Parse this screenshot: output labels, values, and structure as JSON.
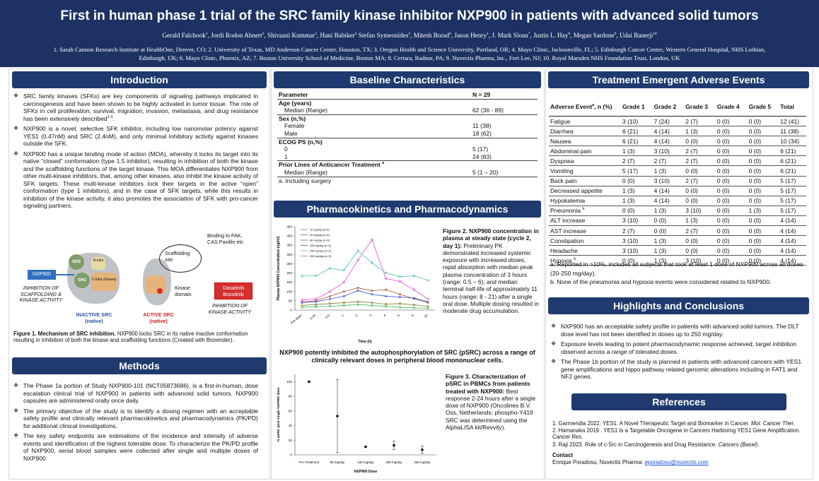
{
  "header": {
    "title": "First in human phase 1 trial of the SRC family kinase inhibitor NXP900 in patients with advanced solid tumors",
    "authors": [
      {
        "t": "Gerald Falchook"
      },
      {
        "sup": "1"
      },
      {
        "t": ", Jordi Rodon Ahnert"
      },
      {
        "sup": "2"
      },
      {
        "t": ", Shivaani Kummar"
      },
      {
        "sup": "3"
      },
      {
        "t": ", Hani Babiker"
      },
      {
        "sup": "4"
      },
      {
        "t": " Stefan Symeonides"
      },
      {
        "sup": "5"
      },
      {
        "t": ", Mitesh Borad"
      },
      {
        "sup": "6"
      },
      {
        "t": ", Jason Henry"
      },
      {
        "sup": "1"
      },
      {
        "t": ", J. Mark Sloan"
      },
      {
        "sup": "7"
      },
      {
        "t": ", Justin L. Hay"
      },
      {
        "sup": "8"
      },
      {
        "t": ", Megan Sardone"
      },
      {
        "sup": "9"
      },
      {
        "t": ", Udai Banerji"
      },
      {
        "sup": "10"
      }
    ],
    "affiliations": "1. Sarah Cannon Research Institute at HealthOne, Denver, CO; 2. University of Texas, MD Anderson Cancer Center, Houston, TX; 3. Oregon Health and Science University, Portland, OR; 4. Mayo Clinic, Jacksonville, FL; 5. Edinburgh Cancer Centre, Western General Hospital, NHS Lothian, Edinburgh, UK; 6. Mayo Clinic, Phoenix, AZ; 7. Boston University School of Medicine, Boston  MA; 8. Certara, Radnor, PA; 9. Nuvectis Pharma, Inc., Fort Lee, NJ; 10. Royal Marsden NHS Foundation Trust, London, UK"
  },
  "introduction": {
    "title": "Introduction",
    "bullets": [
      [
        {
          "t": "SRC family kinases (SFKs) are key components of signaling pathways implicated in carcinogenesis and have been shown to be highly activated in tumor tissue. The role of SFKs in cell proliferation, survival, migration, invasion, metastasis, and drug resistance has been extensively described"
        },
        {
          "sup": "1-3"
        },
        {
          "t": "."
        }
      ],
      [
        {
          "t": "NXP900 is a novel, selective SFK inhibitor, including low nanomolar potency against YES1 (0.47nM) and SRC (2.4nM), and only minimal inhibitory activity against kinases outside the SFK."
        }
      ],
      [
        {
          "t": "NXP900 has a unique binding mode of action (MOA), whereby it locks its target into its native “closed” conformation (type 1.5 inhibitor), resulting in inhibition of both the kinase and the scaffolding functions of the target kinase. This MOA differentiates NXP900 from other multi-kinase inhibitors, that, among other kinases, also inhibit the kinase activity of SFK targets. These multi-kinase inhibitors lock their targets in the active “open” conformation (type 1 inhibitors), and in the case of SFK targets, while this results in inhibition of the kinase activity, it also promotes the association of SFK with pro-cancer signaling partners."
        }
      ]
    ]
  },
  "figure1": {
    "sh3": "SH3",
    "sh2": "SH2",
    "nlobe": "N-lobe",
    "clobe": "C-lobe (Kinase)",
    "nxp900": "NXP900",
    "inhibition_scaffolding": "INHIBITION OF SCAFFOLDING & KINASE ACTIVITY",
    "inactive": "INACTIVE SRC (native)",
    "scaffolding_site": "Scaffolding site",
    "binding": "Binding to FAK, CAS Paxillin etc",
    "kinase_domain": "Kinase domain",
    "drugs": "Dasatinib Bosutinib",
    "inhibition_kinase": "INHIBITION OF KINASE ACTIVITY",
    "active": "ACTIVE SRC (native)",
    "caption": [
      {
        "b": "Figure 1. Mechanism of SRC inhibition."
      },
      {
        "t": " NXP900 locks SRC in its native inactive conformation resulting in inhibition of  both the kinase and scaffolding functions (Created with Biorender)."
      }
    ]
  },
  "methods": {
    "title": "Methods",
    "bullets": [
      [
        {
          "t": "The Phase 1a portion of Study NXP900-101 (NCT05873686), is a first-in-human, dose escalation clinical trial of NXP900 in patients with advanced solid tumors. NXP900 capsules are administered orally once daily."
        }
      ],
      [
        {
          "t": "The primary objective of the study is to identify a dosing regimen with an acceptable safety profile and clinically relevant pharmacokinetics and pharmacodynamics (PK/PD) for additional clinical investigations."
        }
      ],
      [
        {
          "t": "The key safety endpoints are estimations of the incidence and intensity of adverse events and identification of the highest tolerable dose. To characterize the PK/PD profile of NXP900, serial blood samples were collected after single and multiple doses of NXP900."
        }
      ]
    ]
  },
  "baseline": {
    "title": "Baseline Characteristics",
    "header": [
      "Parameter",
      "N = 29"
    ],
    "groups": [
      {
        "name": "Age (years)",
        "rows": [
          [
            "Median (Range)",
            "62 (36 - 89)"
          ]
        ]
      },
      {
        "name": "Sex (n,%)",
        "rows": [
          [
            "Female",
            "11 (38)"
          ],
          [
            "Male",
            "18 (62)"
          ]
        ]
      },
      {
        "name": "ECOG PS  (n,%)",
        "rows": [
          [
            "0",
            "5 (17)"
          ],
          [
            "1",
            "24 (83)"
          ]
        ]
      },
      {
        "name": "Prior Lines of Anticancer Treatment",
        "sup": "a",
        "rows": [
          [
            "Median (Range)",
            "5 (1 – 20)"
          ]
        ]
      }
    ],
    "footnote": "a. Including surgery"
  },
  "pkpd": {
    "title": "Pharmacokinetics and Pharmacodynamics",
    "figure2": {
      "chart": {
        "type": "line",
        "categories": [
          "Pre-dose",
          "0.25",
          "0.5",
          "1",
          "2",
          "3",
          "4",
          "5",
          "6",
          "24"
        ],
        "series": [
          {
            "name": "20 mg/day (n=4)",
            "color": "#3cb44b",
            "values": [
              15,
              18,
              20,
              25,
              30,
              25,
              20,
              15,
              12,
              10
            ]
          },
          {
            "name": "40 mg/day (n=4)",
            "color": "#7a7a2a",
            "values": [
              25,
              30,
              35,
              40,
              45,
              40,
              32,
              35,
              28,
              20
            ]
          },
          {
            "name": "80 mg/day (n=3)",
            "color": "#a0522d",
            "values": [
              45,
              50,
              75,
              100,
              120,
              105,
              110,
              85,
              62,
              40
            ]
          },
          {
            "name": "150 mg/day (n=3)",
            "color": "#3f51d8",
            "values": [
              40,
              45,
              60,
              75,
              105,
              85,
              75,
              70,
              65,
              45
            ]
          },
          {
            "name": "200 mg/day (n=3)",
            "color": "#4fc1b0",
            "values": [
              185,
              185,
              225,
              215,
              320,
              255,
              200,
              180,
              185,
              160
            ]
          },
          {
            "name": "250 mg/day (n=3)",
            "color": "#e64ad8",
            "values": [
              55,
              60,
              100,
              150,
              270,
              380,
              170,
              155,
              110,
              60
            ]
          }
        ],
        "ylim": [
          0,
          450
        ],
        "yticks": [
          0,
          50,
          100,
          150,
          200,
          250,
          300,
          350,
          400,
          450
        ],
        "y_label": "Plasma NXP900 Concentration (ng/ml)",
        "x_label": "Time (h)"
      },
      "caption": [
        {
          "b": "Figure 2. NXP900 concentration in plasma at steady state (cycle 2, day 1):"
        },
        {
          "t": " Preliminary PK demonstrated increased systemic exposure with increased doses, rapid absorption with median peak plasma concentration of 3 hours (range: 0.5 – 6), and median terminal half-life of approximately 11 hours (range: 8 - 21) after a single oral dose. Multiple dosing resulted in moderate drug accumulation."
        }
      ]
    },
    "psrc_title": "NXP900 potently inhibited the autophosphorylation of SRC (pSRC) across a range of clinically relevant doses in peripheral blood mononuclear cells.",
    "figure3": {
      "chart": {
        "type": "scatter",
        "categories": [
          "Pre-Treatment",
          "80 mg/day",
          "150 mg/day",
          "200 mg/day",
          "250 mg/day"
        ],
        "values": [
          100,
          53,
          11,
          13,
          7
        ],
        "errors": [
          0,
          50,
          0,
          6,
          5
        ],
        "color": "#111111",
        "ylim": [
          0,
          110
        ],
        "yticks": [
          0,
          20,
          40,
          60,
          80,
          100
        ],
        "y_label": "% pSRC post single NXP900 dose",
        "x_label": "NXP900 Dose"
      },
      "caption": [
        {
          "b": "Figure 3. Characterization of pSRC in PBMCs from patients treated with NXP900:"
        },
        {
          "t": " Best response 2-24 hours after a single dose of NXP900 (Oncolines B.V. Oss, Netherlands; phospho-Y419 SRC was determined using the AlphaLISA kit/Revvity)."
        }
      ]
    }
  },
  "adverse_events": {
    "title": "Treatment Emergent Adverse Events",
    "header_first": [
      {
        "t": "Adverse Event"
      },
      {
        "sup": "a"
      },
      {
        "t": ", n (%)"
      }
    ],
    "columns": [
      "Grade 1",
      "Grade 2",
      "Grade 3",
      "Grade 4",
      "Grade 5",
      "Total"
    ],
    "rows": [
      {
        "name": "Fatigue",
        "values": [
          "3 (10)",
          "7 (24)",
          "2 (7)",
          "0 (0)",
          "0 (0)",
          "12 (41)"
        ]
      },
      {
        "name": "Diarrhea",
        "values": [
          "6 (21)",
          "4 (14)",
          "1 (3)",
          "0 (0)",
          "0 (0)",
          "11 (38)"
        ]
      },
      {
        "name": "Nausea",
        "values": [
          "6 (21)",
          "4 (14)",
          "0 (0)",
          "0 (0)",
          "0 (0)",
          "10 (34)"
        ]
      },
      {
        "name": "Abdominal pain",
        "values": [
          "1 (3)",
          "3 (10)",
          "2 (7)",
          "0 (0)",
          "0 (0)",
          "6 (21)"
        ]
      },
      {
        "name": "Dyspnea",
        "values": [
          "2 (7)",
          "2 (7)",
          "2 (7)",
          "0 (0)",
          "0 (0)",
          "6 (21)"
        ]
      },
      {
        "name": "Vomiting",
        "values": [
          "5 (17)",
          "1 (3)",
          "0 (0)",
          "0 (0)",
          "0 (0)",
          "6 (21)"
        ]
      },
      {
        "name": "Back pain",
        "values": [
          "0 (0)",
          "3 (10)",
          "2 (7)",
          "0 (0)",
          "0 (0)",
          "5 (17)"
        ]
      },
      {
        "name": "Decreased appetite",
        "values": [
          "1 (3)",
          "4 (14)",
          "0 (0)",
          "0 (0)",
          "0 (0)",
          "5 (17)"
        ]
      },
      {
        "name": "Hypokalemia",
        "values": [
          "1 (3)",
          "4 (14)",
          "0 (0)",
          "0 (0)",
          "0 (0)",
          "5 (17)"
        ]
      },
      {
        "name": "Pneumonia",
        "sup": "b",
        "values": [
          "0 (0)",
          "1 (3)",
          "3 (10)",
          "0 (0)",
          "1 (3)",
          "5 (17)"
        ]
      },
      {
        "name": "ALT increase",
        "values": [
          "3 (10)",
          "0 (0)",
          "1 (3)",
          "0 (0)",
          "0 (0)",
          "4 (14)"
        ]
      },
      {
        "name": "AST increase",
        "values": [
          "2 (7)",
          "0 (0)",
          "2 (7)",
          "0 (0)",
          "0 (0)",
          "4 (14)"
        ]
      },
      {
        "name": "Constipation",
        "values": [
          "3 (10)",
          "1 (3)",
          "0 (0)",
          "0 (0)",
          "0 (0)",
          "4 (14)"
        ]
      },
      {
        "name": "Headache",
        "values": [
          "3 (10)",
          "1 (3)",
          "0 (0)",
          "0 (0)",
          "0 (0)",
          "4 (14)"
        ]
      },
      {
        "name": "Hypoxia",
        "sup": "b",
        "values": [
          "0 (0)",
          "1 (3)",
          "3 (10)",
          "0 (0)",
          "0 (0)",
          "4 (14)"
        ]
      }
    ],
    "footnotes": [
      "a. Reported in >10%, includes all subjects that took at least 1 dose of NXP900 across all doses (20-250 mg/day).",
      "b. None of the pneumonia and hypoxia events were considered related to NXP900."
    ]
  },
  "highlights": {
    "title": "Highlights and Conclusions",
    "bullets": [
      [
        {
          "t": "NXP900 has an acceptable safety profile in patients with advanced solid tumors. The DLT dose level has not been identified in doses up to 250 mg/day."
        }
      ],
      [
        {
          "t": "Exposure levels leading to potent pharmacodynamic response achieved; target inhibition observed across a range of tolerated doses."
        }
      ],
      [
        {
          "t": "The Phase 1b portion of the study is planned in patients with advanced cancers with YES1 gene amplifications and hippo pathway related genomic alterations including in  FAT1 and NF2 genes."
        }
      ]
    ]
  },
  "references": {
    "title": "References",
    "items": [
      [
        {
          "t": "1.  Garmendia 2022. YES1: A Novel Therapeutic Target and Biomarker in Cancer. "
        },
        {
          "i": "Mol. Cancer Ther."
        }
      ],
      [
        {
          "t": "2.  Hamanaka 2019 . YES1 Is a Targetable Oncogene in Cancers Harboring YES1 Gene Amplification. "
        },
        {
          "i": "Cancer Res."
        }
      ],
      [
        {
          "t": "3.  Raji 2023. Role of c-Src in Carcinogenesis and Drug Resistance. "
        },
        {
          "i": "Cancers (Basel)."
        }
      ]
    ],
    "contact_label": "Contact",
    "contact": [
      {
        "t": "Enrique Poradosu, Nuvectis Pharma: "
      },
      {
        "a": "eporadosu@nuvectis.com"
      }
    ]
  }
}
